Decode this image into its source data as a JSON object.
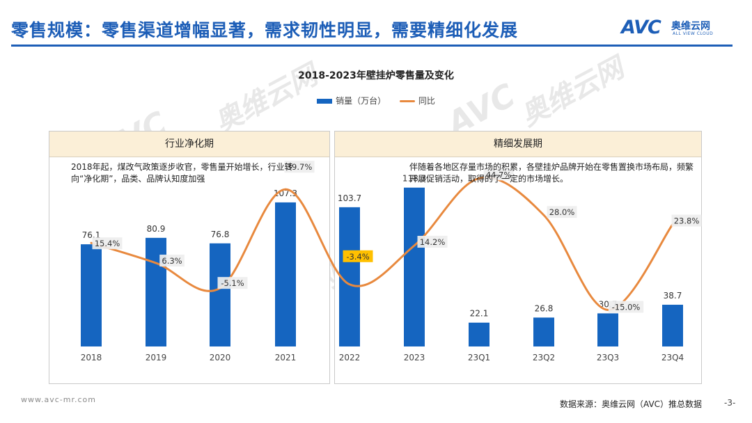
{
  "header": {
    "title": "零售规模：零售渠道增幅显著，需求韧性明显，需要精细化发展"
  },
  "logo": {
    "brand": "AVC",
    "name_cn": "奥维云网",
    "name_en": "ALL VIEW CLOUD"
  },
  "panels": {
    "left": {
      "title": "行业净化期",
      "note": "2018年起，煤改气政策逐步收官，零售量开始增长，行业转向“净化期”，品类、品牌认知度加强"
    },
    "right": {
      "title": "精细发展期",
      "note": "伴随着各地区存量市场的积累，各壁挂炉品牌开始在零售置换市场布局，频繁开展促销活动，取得的了一定的市场增长。"
    }
  },
  "footer": {
    "url": "www.avc-mr.com",
    "source": "数据来源：奥维云网（AVC）推总数据",
    "page": "-3-"
  },
  "colors": {
    "accent": "#1d5eb7",
    "bar": "#1565c0",
    "line": "#e8893e",
    "panel_head": "#fbefd7",
    "highlight_label": "#ffc000"
  },
  "chart_data": {
    "type": "bar",
    "title": "2018-2023年壁挂炉零售量及变化",
    "categories": [
      "2018",
      "2019",
      "2020",
      "2021",
      "2022",
      "2023",
      "23Q1",
      "23Q2",
      "23Q3",
      "23Q4"
    ],
    "series": [
      {
        "name": "销量（万台）",
        "type": "bar",
        "values": [
          76.1,
          80.9,
          76.8,
          107.3,
          103.7,
          118.3,
          22.1,
          26.8,
          30.7,
          38.7
        ],
        "labels": [
          "76.1",
          "80.9",
          "76.8",
          "107.3",
          "103.7",
          "118.3",
          "22.1",
          "26.8",
          "30.7",
          "38.7"
        ]
      },
      {
        "name": "同比",
        "type": "line",
        "values": [
          15.4,
          6.3,
          -5.1,
          39.7,
          -3.4,
          14.2,
          44.7,
          28.0,
          -15.0,
          23.8
        ],
        "labels": [
          "15.4%",
          "6.3%",
          "-5.1%",
          "39.7%",
          "-3.4%",
          "14.2%",
          "44.7%",
          "28.0%",
          "-15.0%",
          "23.8%"
        ],
        "highlight_index": 4
      }
    ],
    "legend_position": "top-center",
    "grid": false
  }
}
